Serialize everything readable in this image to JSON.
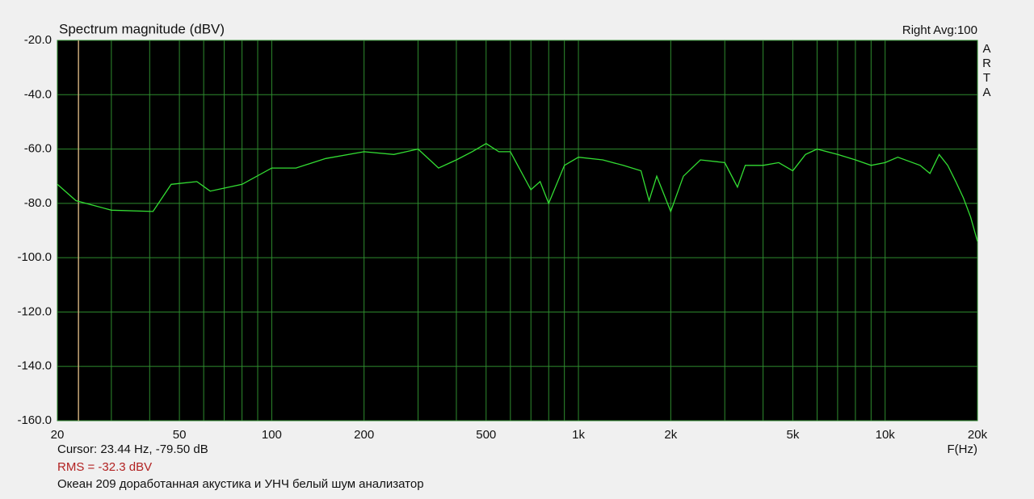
{
  "chart_data": {
    "type": "line",
    "title": "Spectrum magnitude (dBV)",
    "channel_label": "Right  Avg:100",
    "brand": "ARTA",
    "x_label": "F(Hz)",
    "cursor": {
      "x": 23.44,
      "label": "Cursor: 23.44 Hz, -79.50 dB",
      "color": "#c8a878"
    },
    "rms_label": "RMS =  -32.3 dBV",
    "rms_color": "#b22222",
    "note": "Океан 209 доработанная акустика и УНЧ белый шум анализатор",
    "x_scale": "log",
    "xlim": [
      20,
      20000
    ],
    "xticks": [
      20,
      50,
      100,
      200,
      500,
      {
        "value": 1000,
        "label": "1k"
      },
      {
        "value": 2000,
        "label": "2k"
      },
      {
        "value": 5000,
        "label": "5k"
      },
      {
        "value": 10000,
        "label": "10k"
      },
      {
        "value": 20000,
        "label": "20k"
      }
    ],
    "xgrid_minor": [
      30,
      40,
      60,
      70,
      80,
      90,
      300,
      400,
      600,
      700,
      800,
      900,
      3000,
      4000,
      6000,
      7000,
      8000,
      9000
    ],
    "ylim": [
      -160,
      -20
    ],
    "yticks": [
      {
        "value": -20,
        "label": "-20.0"
      },
      {
        "value": -40,
        "label": "-40.0"
      },
      {
        "value": -60,
        "label": "-60.0"
      },
      {
        "value": -80,
        "label": "-80.0"
      },
      {
        "value": -100,
        "label": "-100.0"
      },
      {
        "value": -120,
        "label": "-120.0"
      },
      {
        "value": -140,
        "label": "-140.0"
      },
      {
        "value": -160,
        "label": "-160.0"
      }
    ],
    "grid": true,
    "grid_color": "#2e8b2e",
    "series": [
      {
        "name": "Right",
        "color": "#33dd33",
        "x": [
          20,
          23,
          30,
          41,
          47,
          57,
          63,
          80,
          100,
          120,
          150,
          200,
          250,
          300,
          350,
          400,
          450,
          500,
          550,
          600,
          700,
          750,
          800,
          900,
          1000,
          1200,
          1400,
          1600,
          1700,
          1800,
          2000,
          2200,
          2500,
          3000,
          3300,
          3500,
          4000,
          4500,
          5000,
          5500,
          6000,
          7000,
          8000,
          9000,
          10000,
          11000,
          13000,
          14000,
          15000,
          16000,
          17000,
          18000,
          19000,
          20000
        ],
        "values": [
          -73,
          -79,
          -82.5,
          -83,
          -73,
          -72,
          -75.5,
          -73,
          -67,
          -67,
          -63.5,
          -61,
          -62,
          -60,
          -67,
          -64,
          -61,
          -58,
          -61,
          -61,
          -75,
          -72,
          -80,
          -66,
          -63,
          -64,
          -66,
          -68,
          -79,
          -70,
          -83,
          -70,
          -64,
          -65,
          -74,
          -66,
          -66,
          -65,
          -68,
          -62,
          -60,
          -62,
          -64,
          -66,
          -65,
          -63,
          -66,
          -69,
          -62,
          -66,
          -72,
          -78,
          -85,
          -94
        ]
      }
    ]
  }
}
